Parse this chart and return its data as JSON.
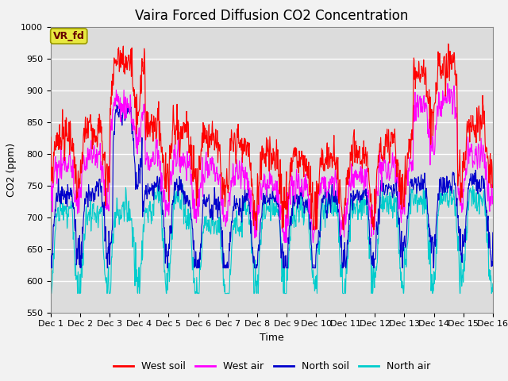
{
  "title": "Vaira Forced Diffusion CO2 Concentration",
  "xlabel": "Time",
  "ylabel": "CO2 (ppm)",
  "ylim": [
    550,
    1000
  ],
  "yticks": [
    550,
    600,
    650,
    700,
    750,
    800,
    850,
    900,
    950,
    1000
  ],
  "xtick_labels": [
    "Dec 1",
    "Dec 2",
    "Dec 3",
    "Dec 4",
    "Dec 5",
    "Dec 6",
    "Dec 7",
    "Dec 8",
    "Dec 9",
    "Dec 10",
    "Dec 11",
    "Dec 12",
    "Dec 13",
    "Dec 14",
    "Dec 15",
    "Dec 16"
  ],
  "n_days": 15,
  "points_per_day": 96,
  "colors": {
    "west_soil": "#ff0000",
    "west_air": "#ff00ff",
    "north_soil": "#0000cc",
    "north_air": "#00cccc"
  },
  "legend_labels": [
    "West soil",
    "West air",
    "North soil",
    "North air"
  ],
  "vr_fd_box_color": "#e8e840",
  "vr_fd_edge_color": "#999900",
  "background_color": "#dcdcdc",
  "grid_color": "#ffffff",
  "annotation_text": "VR_fd",
  "annotation_fontsize": 9,
  "title_fontsize": 12,
  "label_fontsize": 9,
  "tick_fontsize": 8,
  "legend_fontsize": 9,
  "linewidth": 0.8
}
